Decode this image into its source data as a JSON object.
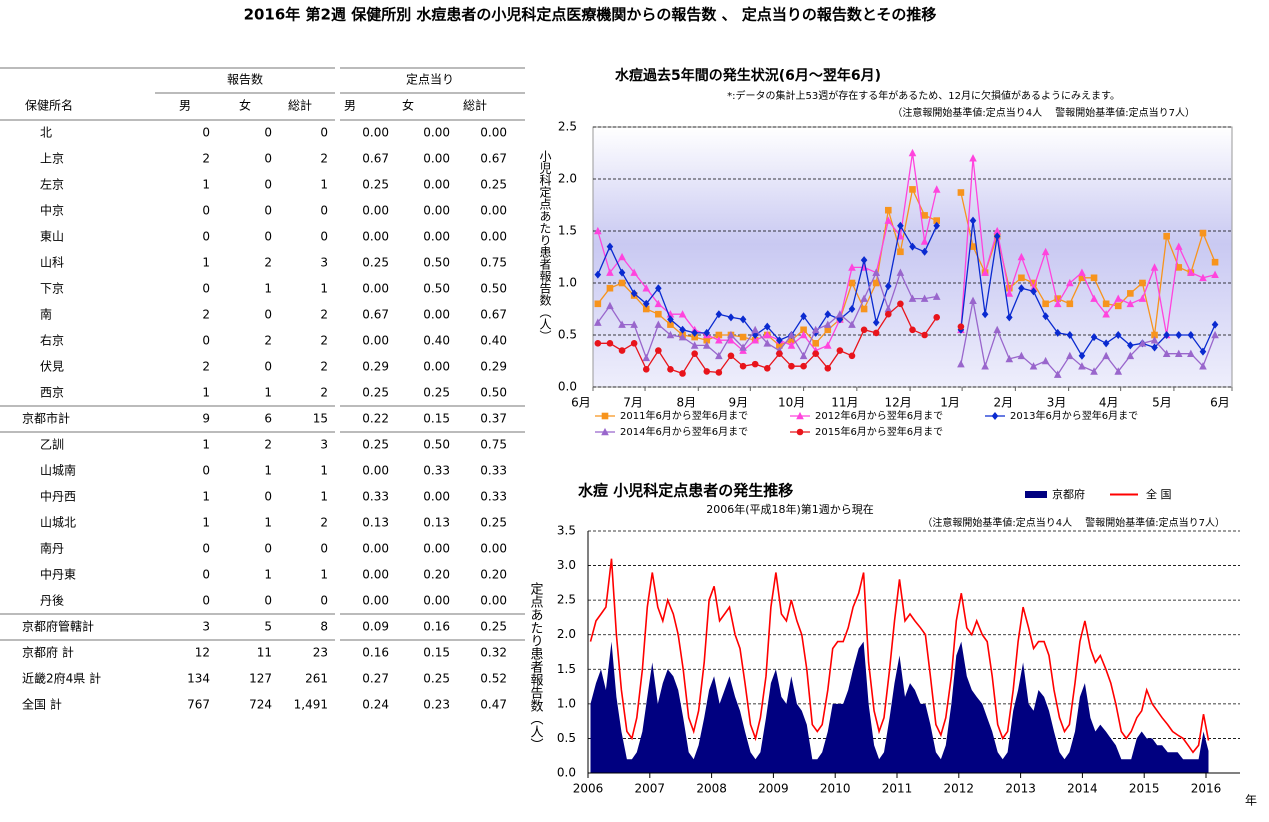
{
  "title": "2016年 第2週 保健所別 水痘患者の小児科定点医療機関からの報告数 、 定点当りの報告数とその推移",
  "table": {
    "group_headers": [
      "報告数",
      "定点当り"
    ],
    "columns": [
      "保健所名",
      "男",
      "女",
      "総計",
      "男",
      "女",
      "総計"
    ],
    "rows": [
      [
        "北",
        "0",
        "0",
        "0",
        "0.00",
        "0.00",
        "0.00"
      ],
      [
        "上京",
        "2",
        "0",
        "2",
        "0.67",
        "0.00",
        "0.67"
      ],
      [
        "左京",
        "1",
        "0",
        "1",
        "0.25",
        "0.00",
        "0.25"
      ],
      [
        "中京",
        "0",
        "0",
        "0",
        "0.00",
        "0.00",
        "0.00"
      ],
      [
        "東山",
        "0",
        "0",
        "0",
        "0.00",
        "0.00",
        "0.00"
      ],
      [
        "山科",
        "1",
        "2",
        "3",
        "0.25",
        "0.50",
        "0.75"
      ],
      [
        "下京",
        "0",
        "1",
        "1",
        "0.00",
        "0.50",
        "0.50"
      ],
      [
        "南",
        "2",
        "0",
        "2",
        "0.67",
        "0.00",
        "0.67"
      ],
      [
        "右京",
        "0",
        "2",
        "2",
        "0.00",
        "0.40",
        "0.40"
      ],
      [
        "伏見",
        "2",
        "0",
        "2",
        "0.29",
        "0.00",
        "0.29"
      ],
      [
        "西京",
        "1",
        "1",
        "2",
        "0.25",
        "0.25",
        "0.50"
      ],
      [
        "京都市計",
        "9",
        "6",
        "15",
        "0.22",
        "0.15",
        "0.37"
      ],
      [
        "乙訓",
        "1",
        "2",
        "3",
        "0.25",
        "0.50",
        "0.75"
      ],
      [
        "山城南",
        "0",
        "1",
        "1",
        "0.00",
        "0.33",
        "0.33"
      ],
      [
        "中丹西",
        "1",
        "0",
        "1",
        "0.33",
        "0.00",
        "0.33"
      ],
      [
        "山城北",
        "1",
        "1",
        "2",
        "0.13",
        "0.13",
        "0.25"
      ],
      [
        "南丹",
        "0",
        "0",
        "0",
        "0.00",
        "0.00",
        "0.00"
      ],
      [
        "中丹東",
        "0",
        "1",
        "1",
        "0.00",
        "0.20",
        "0.20"
      ],
      [
        "丹後",
        "0",
        "0",
        "0",
        "0.00",
        "0.00",
        "0.00"
      ],
      [
        "京都府管轄計",
        "3",
        "5",
        "8",
        "0.09",
        "0.16",
        "0.25"
      ],
      [
        "京都府  計",
        "12",
        "11",
        "23",
        "0.16",
        "0.15",
        "0.32"
      ],
      [
        "近畿2府4県  計",
        "134",
        "127",
        "261",
        "0.27",
        "0.25",
        "0.52"
      ],
      [
        "全国  計",
        "767",
        "724",
        "1,491",
        "0.24",
        "0.23",
        "0.47"
      ]
    ]
  },
  "chart_data": [
    {
      "type": "line",
      "title": "水痘過去5年間の発生状況(6月～翌年6月)",
      "notes": [
        "*:データの集計上53週が存在する年があるため、12月に欠損値があるようにみえます。",
        "（注意報開始基準値:定点当り4人　 警報開始基準値:定点当り7人）"
      ],
      "ylabel": "小児科定点あたり患者報告数（人）",
      "x": [
        1,
        2,
        3,
        4,
        5,
        6,
        7,
        8,
        9,
        10,
        11,
        12,
        13,
        14,
        15,
        16,
        17,
        18,
        19,
        20,
        21,
        22,
        23,
        24,
        25,
        26,
        27,
        28,
        29,
        30,
        31,
        32,
        33,
        34,
        35,
        36,
        37,
        38,
        39,
        40,
        41,
        42,
        43,
        44,
        45,
        46,
        47,
        48,
        49,
        50,
        51,
        52
      ],
      "xlim": [
        0.6,
        53.4
      ],
      "xticks": [
        {
          "value": 0.6,
          "label": "6月"
        },
        {
          "value": 4.9,
          "label": "7月"
        },
        {
          "value": 9.3,
          "label": "8月"
        },
        {
          "value": 13.6,
          "label": "9月"
        },
        {
          "value": 18.0,
          "label": "10月"
        },
        {
          "value": 22.4,
          "label": "11月"
        },
        {
          "value": 26.8,
          "label": "12月"
        },
        {
          "value": 31.1,
          "label": "1月"
        },
        {
          "value": 35.5,
          "label": "2月"
        },
        {
          "value": 39.9,
          "label": "3月"
        },
        {
          "value": 44.2,
          "label": "4月"
        },
        {
          "value": 48.6,
          "label": "5月"
        },
        {
          "value": 53.4,
          "label": "6月"
        }
      ],
      "ylim": [
        0,
        2.5
      ],
      "yticks": [
        {
          "value": 0,
          "label": "0.0"
        },
        0.5,
        {
          "value": 1,
          "label": "1.0"
        },
        1.5,
        {
          "value": 2,
          "label": "2.0"
        },
        2.5
      ],
      "grid": true,
      "legend": "bottom",
      "series": [
        {
          "name": "2011年6月から翌年6月まで",
          "color": "#f7941d",
          "marker": "square",
          "values": [
            0.8,
            0.95,
            1.0,
            0.88,
            0.75,
            0.7,
            0.6,
            0.5,
            0.48,
            0.45,
            0.5,
            0.5,
            0.48,
            0.45,
            0.5,
            0.4,
            0.45,
            0.55,
            0.42,
            0.55,
            0.65,
            1.0,
            0.75,
            1.0,
            1.7,
            1.3,
            1.9,
            1.65,
            1.6,
            null,
            1.87,
            1.35,
            1.1,
            1.45,
            0.95,
            1.05,
            1.0,
            0.8,
            0.85,
            0.8,
            1.05,
            1.05,
            0.8,
            0.78,
            0.9,
            1.0,
            0.5,
            1.45,
            1.15,
            1.1,
            1.48,
            1.2
          ]
        },
        {
          "name": "2012年6月から翌年6月まで",
          "color": "#ff44dd",
          "marker": "triangle",
          "values": [
            1.5,
            1.1,
            1.25,
            1.1,
            0.95,
            0.8,
            0.7,
            0.7,
            0.55,
            0.5,
            0.45,
            0.45,
            0.35,
            0.45,
            0.5,
            0.45,
            0.4,
            0.5,
            0.35,
            0.4,
            0.65,
            1.15,
            1.15,
            1.1,
            1.6,
            1.45,
            2.25,
            1.4,
            1.9,
            null,
            0.55,
            2.2,
            1.1,
            1.5,
            0.9,
            1.25,
            0.95,
            1.3,
            0.8,
            1.0,
            1.1,
            0.85,
            0.7,
            0.85,
            0.8,
            0.85,
            1.15,
            0.5,
            1.35,
            1.1,
            1.05,
            1.08
          ]
        },
        {
          "name": "2013年6月から翌年6月まで",
          "color": "#0a2ad0",
          "marker": "diamond",
          "values": [
            1.08,
            1.35,
            1.1,
            0.9,
            0.8,
            0.95,
            0.65,
            0.55,
            0.52,
            0.52,
            0.7,
            0.67,
            0.65,
            0.5,
            0.58,
            0.45,
            0.5,
            0.68,
            0.52,
            0.7,
            0.65,
            0.75,
            1.22,
            0.62,
            0.97,
            1.55,
            1.35,
            1.3,
            1.55,
            null,
            0.55,
            1.6,
            0.7,
            1.45,
            0.67,
            0.95,
            0.92,
            0.68,
            0.52,
            0.5,
            0.3,
            0.48,
            0.42,
            0.5,
            0.4,
            0.42,
            0.38,
            0.5,
            0.5,
            0.5,
            0.34,
            0.6
          ]
        },
        {
          "name": "2014年6月から翌年6月まで",
          "color": "#9966cc",
          "marker": "triangle",
          "values": [
            0.62,
            0.78,
            0.6,
            0.6,
            0.28,
            0.6,
            0.5,
            0.48,
            0.4,
            0.4,
            0.3,
            0.5,
            0.38,
            0.55,
            0.42,
            0.35,
            0.5,
            0.3,
            0.55,
            0.6,
            0.7,
            0.6,
            0.85,
            1.1,
            0.75,
            1.1,
            0.85,
            0.85,
            0.87,
            null,
            0.22,
            0.83,
            0.2,
            0.55,
            0.27,
            0.3,
            0.2,
            0.25,
            0.12,
            0.3,
            0.2,
            0.15,
            0.3,
            0.15,
            0.3,
            0.42,
            0.45,
            0.32,
            0.32,
            0.32,
            0.2,
            0.5
          ]
        },
        {
          "name": "2015年6月から翌年6月まで",
          "color": "#e8141b",
          "marker": "circle",
          "values": [
            0.42,
            0.42,
            0.35,
            0.42,
            0.17,
            0.35,
            0.17,
            0.13,
            0.32,
            0.15,
            0.14,
            0.3,
            0.2,
            0.22,
            0.18,
            0.32,
            0.2,
            0.2,
            0.32,
            0.18,
            0.35,
            0.3,
            0.55,
            0.52,
            0.7,
            0.8,
            0.55,
            0.5,
            0.67,
            null,
            0.58,
            null,
            null,
            null,
            null,
            null,
            null,
            null,
            null,
            null,
            null,
            null,
            null,
            null,
            null,
            null,
            null,
            null,
            null,
            null,
            null,
            null
          ]
        }
      ]
    },
    {
      "type": "combo",
      "title": "水痘  小児科定点患者の発生推移",
      "subtitle": "2006年(平成18年)第1週から現在",
      "notes": [
        "（注意報開始基準値:定点当り4人　 警報開始基準値:定点当り7人）"
      ],
      "ylabel": "定点あたり患者報告数（人）",
      "xlabel": "年",
      "x": [
        2006.04,
        2006.13,
        2006.21,
        2006.29,
        2006.38,
        2006.46,
        2006.54,
        2006.63,
        2006.71,
        2006.79,
        2006.88,
        2006.96,
        2007.04,
        2007.13,
        2007.21,
        2007.29,
        2007.38,
        2007.46,
        2007.54,
        2007.63,
        2007.71,
        2007.79,
        2007.88,
        2007.96,
        2008.04,
        2008.13,
        2008.21,
        2008.29,
        2008.38,
        2008.46,
        2008.54,
        2008.63,
        2008.71,
        2008.79,
        2008.88,
        2008.96,
        2009.04,
        2009.13,
        2009.21,
        2009.29,
        2009.38,
        2009.46,
        2009.54,
        2009.63,
        2009.71,
        2009.79,
        2009.88,
        2009.96,
        2010.04,
        2010.13,
        2010.21,
        2010.29,
        2010.38,
        2010.46,
        2010.54,
        2010.63,
        2010.71,
        2010.79,
        2010.88,
        2010.96,
        2011.04,
        2011.13,
        2011.21,
        2011.29,
        2011.38,
        2011.46,
        2011.54,
        2011.63,
        2011.71,
        2011.79,
        2011.88,
        2011.96,
        2012.04,
        2012.13,
        2012.21,
        2012.29,
        2012.38,
        2012.46,
        2012.54,
        2012.63,
        2012.71,
        2012.79,
        2012.88,
        2012.96,
        2013.04,
        2013.13,
        2013.21,
        2013.29,
        2013.38,
        2013.46,
        2013.54,
        2013.63,
        2013.71,
        2013.79,
        2013.88,
        2013.96,
        2014.04,
        2014.13,
        2014.21,
        2014.29,
        2014.38,
        2014.46,
        2014.54,
        2014.63,
        2014.71,
        2014.79,
        2014.88,
        2014.96,
        2015.04,
        2015.13,
        2015.21,
        2015.29,
        2015.38,
        2015.46,
        2015.54,
        2015.63,
        2015.71,
        2015.79,
        2015.88,
        2015.96,
        2016.04
      ],
      "xlim": [
        2006,
        2016.55
      ],
      "xticks": [
        2006,
        2007,
        2008,
        2009,
        2010,
        2011,
        2012,
        2013,
        2014,
        2015,
        2016
      ],
      "ylim": [
        0,
        3.5
      ],
      "yticks": [
        {
          "value": 0,
          "label": "0.0"
        },
        0.5,
        {
          "value": 1,
          "label": "1.0"
        },
        1.5,
        {
          "value": 2,
          "label": "2.0"
        },
        2.5,
        {
          "value": 3,
          "label": "3.0"
        },
        3.5
      ],
      "grid": true,
      "legend": "top",
      "series": [
        {
          "name": "京都府",
          "color": "#000080",
          "style": "area",
          "values": [
            1.0,
            1.3,
            1.5,
            1.2,
            1.9,
            1.1,
            0.6,
            0.2,
            0.2,
            0.3,
            0.6,
            1.1,
            1.6,
            1.0,
            1.3,
            1.5,
            1.4,
            1.2,
            0.8,
            0.3,
            0.2,
            0.4,
            0.8,
            1.2,
            1.4,
            1.0,
            1.2,
            1.4,
            1.1,
            0.9,
            0.6,
            0.3,
            0.2,
            0.3,
            0.8,
            1.3,
            1.5,
            1.1,
            1.0,
            1.4,
            1.0,
            0.9,
            0.7,
            0.2,
            0.2,
            0.3,
            0.6,
            1.0,
            1.0,
            1.0,
            1.2,
            1.5,
            1.8,
            1.9,
            1.0,
            0.4,
            0.2,
            0.3,
            0.8,
            1.3,
            1.7,
            1.1,
            1.3,
            1.2,
            1.0,
            1.0,
            0.7,
            0.3,
            0.2,
            0.4,
            1.0,
            1.7,
            1.9,
            1.4,
            1.2,
            1.1,
            1.0,
            0.8,
            0.6,
            0.3,
            0.2,
            0.3,
            0.9,
            1.2,
            1.6,
            1.0,
            0.9,
            1.2,
            1.1,
            0.9,
            0.6,
            0.3,
            0.2,
            0.3,
            0.6,
            1.1,
            1.3,
            0.8,
            0.6,
            0.7,
            0.6,
            0.5,
            0.4,
            0.2,
            0.2,
            0.2,
            0.5,
            0.6,
            0.5,
            0.5,
            0.4,
            0.4,
            0.3,
            0.3,
            0.3,
            0.2,
            0.2,
            0.2,
            0.2,
            0.6,
            0.32
          ]
        },
        {
          "name": "全 国",
          "color": "#ff0000",
          "style": "line",
          "values": [
            1.9,
            2.2,
            2.3,
            2.4,
            3.1,
            2.0,
            1.2,
            0.6,
            0.5,
            0.8,
            1.5,
            2.4,
            2.9,
            2.4,
            2.2,
            2.5,
            2.3,
            2.0,
            1.5,
            0.8,
            0.6,
            0.9,
            1.6,
            2.5,
            2.7,
            2.2,
            2.3,
            2.4,
            2.0,
            1.8,
            1.3,
            0.7,
            0.5,
            0.8,
            1.4,
            2.4,
            2.9,
            2.3,
            2.2,
            2.5,
            2.2,
            2.0,
            1.5,
            0.7,
            0.6,
            0.7,
            1.2,
            1.8,
            1.9,
            1.9,
            2.1,
            2.4,
            2.6,
            2.9,
            1.6,
            0.9,
            0.6,
            0.8,
            1.5,
            2.2,
            2.8,
            2.2,
            2.3,
            2.2,
            2.1,
            2.0,
            1.4,
            0.7,
            0.55,
            0.8,
            1.4,
            2.2,
            2.6,
            2.1,
            2.0,
            2.2,
            2.0,
            1.9,
            1.4,
            0.7,
            0.5,
            0.6,
            1.2,
            1.9,
            2.4,
            2.1,
            1.8,
            1.9,
            1.9,
            1.7,
            1.2,
            0.8,
            0.6,
            0.7,
            1.3,
            1.9,
            2.2,
            1.8,
            1.6,
            1.7,
            1.5,
            1.3,
            1.0,
            0.6,
            0.5,
            0.6,
            0.8,
            0.9,
            1.2,
            1.0,
            0.9,
            0.8,
            0.7,
            0.6,
            0.55,
            0.5,
            0.4,
            0.3,
            0.4,
            0.85,
            0.47
          ]
        }
      ]
    }
  ]
}
